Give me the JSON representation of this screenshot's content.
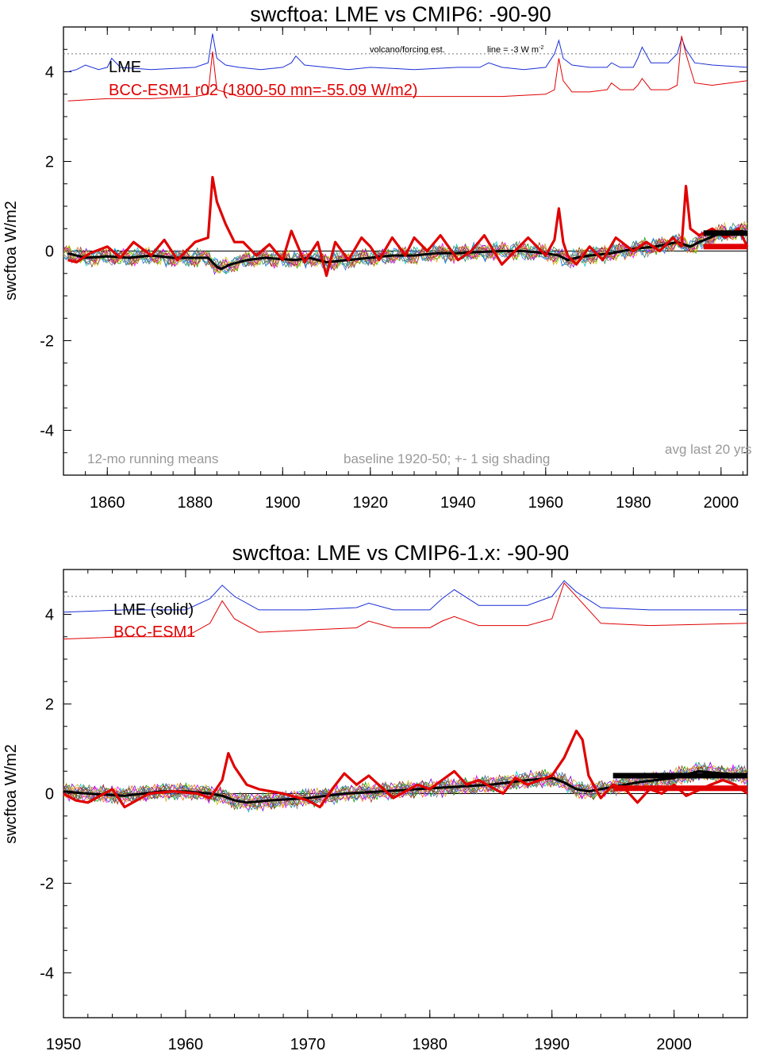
{
  "chart_data": [
    {
      "type": "line",
      "title": "swcftoa: LME vs CMIP6: -90-90",
      "ylabel": "swcftoa W/m2",
      "xlim": [
        1850,
        2006
      ],
      "ylim": [
        -5,
        5
      ],
      "x_ticks": [
        "1860",
        "1880",
        "1900",
        "1920",
        "1940",
        "1960",
        "1980",
        "2000"
      ],
      "y_ticks": [
        "-4",
        "-2",
        "0",
        "2",
        "4"
      ],
      "grid": false,
      "legend": [
        {
          "label": "LME",
          "color": "#000000"
        },
        {
          "label": "BCC-ESM1  r02 (1800-50 mn=-55.09 W/m2)",
          "color": "#e00000"
        }
      ],
      "annotations": {
        "forcing_note": "volcano/forcing est.",
        "line_note": "line = -3 W m",
        "line_note_sup": "-2",
        "left_note": "12-mo running means",
        "center_note": "baseline 1920-50; +- 1 sig shading",
        "right_note": "avg last 20 yrs"
      },
      "forcing_reference_y": 4.4,
      "series": [
        {
          "name": "LME",
          "color": "#000000",
          "x": [
            1851,
            1855,
            1860,
            1865,
            1870,
            1875,
            1880,
            1883,
            1885,
            1886,
            1888,
            1892,
            1896,
            1900,
            1903,
            1906,
            1910,
            1915,
            1920,
            1925,
            1930,
            1935,
            1940,
            1945,
            1950,
            1955,
            1960,
            1963,
            1965,
            1967,
            1970,
            1975,
            1980,
            1985,
            1990,
            1993,
            1995,
            2000,
            2005
          ],
          "y": [
            -0.05,
            -0.15,
            -0.12,
            -0.15,
            -0.1,
            -0.15,
            -0.15,
            -0.15,
            -0.35,
            -0.4,
            -0.3,
            -0.2,
            -0.15,
            -0.18,
            -0.2,
            -0.15,
            -0.25,
            -0.2,
            -0.15,
            -0.1,
            -0.1,
            -0.05,
            -0.05,
            -0.02,
            0.0,
            0.0,
            -0.05,
            -0.1,
            -0.2,
            -0.15,
            -0.1,
            -0.05,
            0.05,
            0.1,
            0.2,
            0.1,
            0.2,
            0.4,
            0.45
          ]
        },
        {
          "name": "BCC-ESM1",
          "color": "#e00000",
          "x": [
            1851,
            1853,
            1856,
            1860,
            1863,
            1866,
            1870,
            1873,
            1876,
            1880,
            1883,
            1884,
            1885,
            1887,
            1889,
            1891,
            1894,
            1897,
            1900,
            1902,
            1905,
            1908,
            1910,
            1912,
            1915,
            1918,
            1920,
            1922,
            1925,
            1928,
            1930,
            1933,
            1936,
            1940,
            1943,
            1946,
            1950,
            1953,
            1956,
            1960,
            1962,
            1963,
            1964,
            1965,
            1967,
            1970,
            1973,
            1976,
            1980,
            1983,
            1986,
            1989,
            1991,
            1992,
            1993,
            1995,
            1998,
            2001,
            2004,
            2006
          ],
          "y": [
            -0.2,
            -0.25,
            -0.05,
            0.1,
            -0.15,
            0.2,
            -0.1,
            0.25,
            -0.2,
            0.2,
            0.3,
            1.65,
            1.1,
            0.6,
            0.2,
            0.2,
            -0.1,
            0.15,
            -0.2,
            0.45,
            -0.25,
            0.2,
            -0.55,
            0.2,
            -0.2,
            0.3,
            0.1,
            -0.2,
            0.3,
            -0.1,
            0.3,
            0.0,
            0.35,
            -0.2,
            0.0,
            0.35,
            -0.3,
            0.0,
            0.3,
            -0.1,
            0.25,
            0.95,
            0.2,
            -0.1,
            -0.3,
            0.1,
            -0.2,
            0.3,
            0.0,
            0.2,
            0.0,
            0.3,
            0.1,
            1.45,
            0.5,
            0.35,
            0.5,
            0.3,
            0.5,
            0.1
          ]
        }
      ],
      "forcing_series": [
        {
          "name": "LME",
          "color": "#1a2fd6",
          "x": [
            1851,
            1853,
            1855,
            1858,
            1860,
            1861,
            1863,
            1870,
            1880,
            1883,
            1884,
            1885,
            1887,
            1890,
            1895,
            1900,
            1902,
            1903,
            1905,
            1910,
            1915,
            1920,
            1930,
            1940,
            1945,
            1947,
            1950,
            1955,
            1960,
            1962,
            1963,
            1964,
            1966,
            1970,
            1974,
            1975,
            1977,
            1980,
            1981,
            1982,
            1984,
            1988,
            1990,
            1991,
            1992,
            1994,
            1998,
            2006
          ],
          "y": [
            4.0,
            4.05,
            4.15,
            4.05,
            4.1,
            4.3,
            4.1,
            4.05,
            4.1,
            4.2,
            4.85,
            4.3,
            4.15,
            4.1,
            4.05,
            4.1,
            4.2,
            4.35,
            4.15,
            4.1,
            4.05,
            4.1,
            4.05,
            4.1,
            4.1,
            4.2,
            4.1,
            4.05,
            4.1,
            4.4,
            4.7,
            4.3,
            4.15,
            4.1,
            4.1,
            4.2,
            4.1,
            4.1,
            4.3,
            4.55,
            4.2,
            4.2,
            4.4,
            4.75,
            4.5,
            4.2,
            4.15,
            4.1
          ]
        },
        {
          "name": "BCC-ESM1",
          "color": "#e00000",
          "x": [
            1851,
            1860,
            1870,
            1880,
            1883,
            1884,
            1885,
            1890,
            1900,
            1910,
            1920,
            1930,
            1940,
            1950,
            1960,
            1962,
            1963,
            1964,
            1966,
            1970,
            1974,
            1975,
            1977,
            1980,
            1981,
            1982,
            1984,
            1988,
            1990,
            1991,
            1992,
            1994,
            1998,
            2006
          ],
          "y": [
            3.35,
            3.4,
            3.4,
            3.45,
            3.5,
            4.45,
            3.6,
            3.45,
            3.45,
            3.45,
            3.45,
            3.45,
            3.45,
            3.45,
            3.5,
            3.6,
            4.3,
            3.8,
            3.55,
            3.55,
            3.6,
            3.75,
            3.6,
            3.6,
            3.7,
            3.85,
            3.6,
            3.6,
            3.7,
            4.8,
            4.4,
            3.75,
            3.7,
            3.8
          ]
        }
      ],
      "last20_avg": [
        {
          "name": "LME",
          "color": "#000000",
          "x": [
            1996,
            2006
          ],
          "y": 0.4
        },
        {
          "name": "BCC-ESM1",
          "color": "#e00000",
          "x": [
            1996,
            2006
          ],
          "y": 0.1
        }
      ]
    },
    {
      "type": "line",
      "title": "swcftoa: LME vs CMIP6-1.x: -90-90",
      "ylabel": "swcftoa W/m2",
      "xlim": [
        1950,
        2006
      ],
      "ylim": [
        -5,
        5
      ],
      "x_ticks": [
        "1950",
        "1960",
        "1970",
        "1980",
        "1990",
        "2000"
      ],
      "y_ticks": [
        "-4",
        "-2",
        "0",
        "2",
        "4"
      ],
      "grid": false,
      "legend": [
        {
          "label": "LME (solid)",
          "color": "#000000"
        },
        {
          "label": "BCC-ESM1",
          "color": "#e00000"
        }
      ],
      "forcing_reference_y": 4.4,
      "series": [
        {
          "name": "LME",
          "color": "#000000",
          "x": [
            1950,
            1952,
            1955,
            1958,
            1960,
            1962,
            1963,
            1964,
            1965,
            1967,
            1970,
            1973,
            1976,
            1979,
            1982,
            1985,
            1988,
            1990,
            1991,
            1992,
            1993,
            1995,
            1997,
            2000,
            2002,
            2004,
            2006
          ],
          "y": [
            0.05,
            0.0,
            -0.05,
            0.05,
            0.05,
            0.0,
            -0.05,
            -0.15,
            -0.2,
            -0.15,
            -0.1,
            0.0,
            0.05,
            0.1,
            0.15,
            0.2,
            0.3,
            0.35,
            0.25,
            0.1,
            0.05,
            0.15,
            0.25,
            0.35,
            0.5,
            0.45,
            0.4
          ]
        },
        {
          "name": "BCC-ESM1",
          "color": "#e00000",
          "x": [
            1950,
            1951,
            1952,
            1954,
            1955,
            1957,
            1959,
            1961,
            1962,
            1963,
            1963.5,
            1964,
            1965,
            1966,
            1968,
            1970,
            1971,
            1972,
            1973,
            1974,
            1975,
            1977,
            1979,
            1980,
            1981,
            1982,
            1983,
            1984,
            1986,
            1987,
            1988,
            1989,
            1990,
            1991,
            1992,
            1992.5,
            1993,
            1994,
            1995,
            1996,
            1997,
            1998,
            1999,
            2000,
            2001,
            2003,
            2004,
            2005,
            2006
          ],
          "y": [
            0.0,
            -0.15,
            -0.2,
            0.1,
            -0.3,
            0.0,
            0.05,
            0.0,
            -0.1,
            0.3,
            0.9,
            0.6,
            0.2,
            0.1,
            0.0,
            -0.15,
            -0.3,
            0.1,
            0.45,
            0.2,
            0.4,
            -0.1,
            0.2,
            0.1,
            0.3,
            0.5,
            0.2,
            0.3,
            0.0,
            0.35,
            0.2,
            0.3,
            0.4,
            0.8,
            1.4,
            1.2,
            0.4,
            -0.1,
            0.2,
            0.1,
            -0.2,
            0.1,
            0.0,
            0.2,
            -0.05,
            0.2,
            0.3,
            0.2,
            0.0
          ]
        }
      ],
      "forcing_series": [
        {
          "name": "LME",
          "color": "#1a2fd6",
          "x": [
            1950,
            1955,
            1960,
            1962,
            1963,
            1964,
            1966,
            1970,
            1974,
            1975,
            1977,
            1980,
            1981,
            1982,
            1984,
            1988,
            1990,
            1991,
            1992,
            1994,
            1998,
            2006
          ],
          "y": [
            4.05,
            4.1,
            4.1,
            4.35,
            4.65,
            4.4,
            4.1,
            4.1,
            4.15,
            4.25,
            4.1,
            4.1,
            4.35,
            4.55,
            4.2,
            4.2,
            4.4,
            4.75,
            4.5,
            4.15,
            4.1,
            4.1
          ]
        },
        {
          "name": "BCC-ESM1",
          "color": "#e00000",
          "x": [
            1950,
            1955,
            1960,
            1962,
            1963,
            1964,
            1966,
            1970,
            1974,
            1975,
            1977,
            1980,
            1981,
            1982,
            1984,
            1988,
            1990,
            1991,
            1992,
            1994,
            1998,
            2006
          ],
          "y": [
            3.45,
            3.5,
            3.5,
            3.8,
            4.3,
            3.9,
            3.6,
            3.65,
            3.7,
            3.85,
            3.7,
            3.7,
            3.85,
            3.95,
            3.75,
            3.75,
            3.9,
            4.7,
            4.4,
            3.8,
            3.75,
            3.8
          ]
        }
      ],
      "last20_avg": [
        {
          "name": "LME",
          "color": "#000000",
          "x": [
            1995,
            2006
          ],
          "y": 0.4
        },
        {
          "name": "BCC-ESM1",
          "color": "#e00000",
          "x": [
            1995,
            2006
          ],
          "y": 0.12
        }
      ]
    }
  ]
}
